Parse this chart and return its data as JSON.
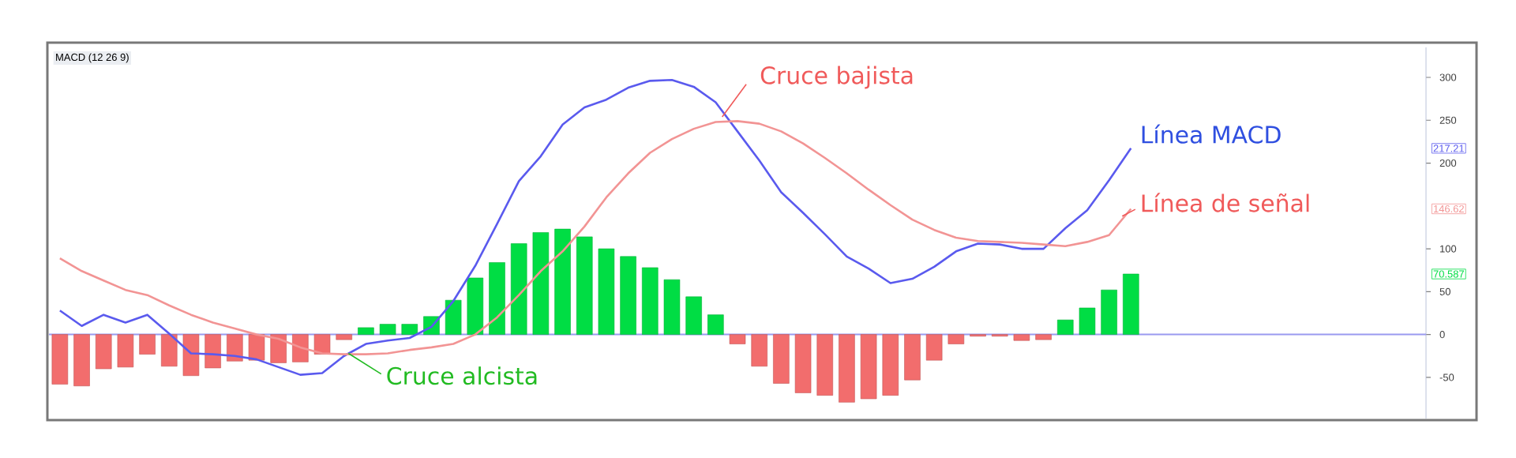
{
  "chart_data": {
    "type": "bar",
    "title": "MACD (12 26 9)",
    "categories": [
      null,
      null,
      null,
      null,
      null,
      null,
      null,
      null,
      null,
      null,
      null,
      null,
      null,
      null,
      null,
      null,
      null,
      null,
      null,
      null,
      null,
      null,
      null,
      null,
      null,
      null,
      null,
      null,
      null,
      null,
      null,
      null,
      null,
      null,
      null,
      null,
      null,
      null,
      null,
      null,
      null,
      null,
      null,
      null,
      null,
      null,
      null,
      null,
      null,
      null
    ],
    "series": [
      {
        "type": "bar",
        "colors": [
          "#f26d6d",
          "#f26d6d",
          "#f26d6d",
          "#f26d6d",
          "#f26d6d",
          "#f26d6d",
          "#f26d6d",
          "#f26d6d",
          "#f26d6d",
          "#f26d6d",
          "#f26d6d",
          "#f26d6d",
          "#f26d6d",
          "#f26d6d",
          "#00dd44",
          "#00dd44",
          "#00dd44",
          "#00dd44",
          "#00dd44",
          "#00dd44",
          "#00dd44",
          "#00dd44",
          "#00dd44",
          "#00dd44",
          "#00dd44",
          "#00dd44",
          "#00dd44",
          "#00dd44",
          "#00dd44",
          "#00dd44",
          "#00dd44",
          "#f26d6d",
          "#f26d6d",
          "#f26d6d",
          "#f26d6d",
          "#f26d6d",
          "#f26d6d",
          "#f26d6d",
          "#f26d6d",
          "#f26d6d",
          "#f26d6d",
          "#f26d6d",
          "#f26d6d",
          "#f26d6d",
          "#f26d6d",
          "#f26d6d",
          "#00dd44",
          "#00dd44",
          "#00dd44",
          "#00dd44"
        ],
        "color": "#00dd44",
        "values": [
          -58,
          -60,
          -40,
          -38,
          -23,
          -37,
          -48,
          -39,
          -31,
          -30,
          -33,
          -32,
          -23,
          -6,
          8,
          12,
          12,
          21,
          40,
          66,
          84,
          106,
          119,
          123,
          114,
          100,
          91,
          78,
          64,
          44,
          23,
          -11,
          -37,
          -57,
          -68,
          -71,
          -79,
          -75,
          -71,
          -53,
          -30,
          -11,
          -2,
          -2,
          -7,
          -6,
          17,
          31,
          52,
          70.587
        ]
      },
      {
        "type": "line",
        "color": "#5a5aee",
        "values": [
          28,
          10,
          23,
          14,
          23,
          1,
          -22,
          -23,
          -25,
          -29,
          -38,
          -47,
          -45,
          -25,
          -11,
          -7,
          -4,
          9,
          39,
          80,
          129,
          179,
          208,
          245,
          265,
          274,
          288,
          296,
          297,
          289,
          271,
          237,
          203,
          166,
          142,
          117,
          91,
          77,
          60,
          65,
          79,
          97,
          106,
          105,
          100,
          100,
          124,
          145,
          180,
          217.21
        ]
      },
      {
        "type": "line",
        "color": "#f29494",
        "values": [
          89,
          74,
          63,
          52,
          46,
          34,
          23,
          14,
          7,
          0,
          -5,
          -15,
          -22,
          -23,
          -23,
          -22,
          -18,
          -15,
          -11,
          0,
          20,
          46,
          74,
          97,
          126,
          160,
          188,
          212,
          228,
          240,
          248,
          249,
          246,
          237,
          223,
          206,
          188,
          169,
          151,
          134,
          122,
          113,
          109,
          108,
          107,
          105,
          103,
          108,
          116,
          146.62
        ]
      }
    ],
    "annotations": [
      "Cruce bajista",
      "Línea MACD",
      "Línea de señal",
      "Cruce alcista",
      "217.21",
      "146.62",
      "70.587"
    ],
    "ref_lines": [
      {
        "axis": "y",
        "value": 0,
        "color": "#9a9af0"
      }
    ],
    "ylim": [
      -98,
      335
    ],
    "yticks": [
      -50,
      0,
      50,
      100,
      200,
      250,
      300
    ],
    "tick_labels": "y",
    "grid": false,
    "marker": "none",
    "line_style": "solid"
  }
}
